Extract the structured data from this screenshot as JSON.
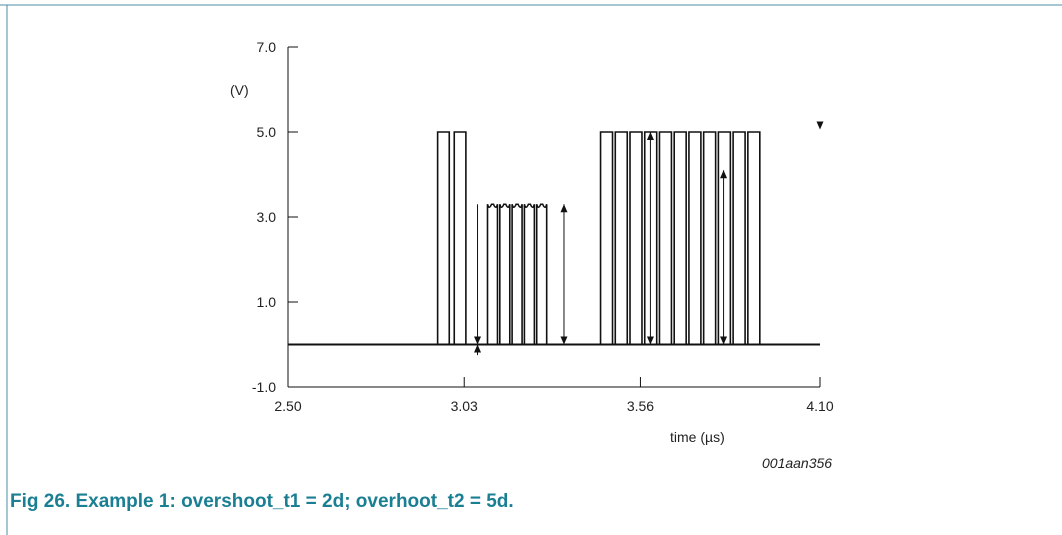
{
  "chart_data": {
    "type": "line",
    "title": "",
    "ylabel": "(V)",
    "xlabel": "time (µs)",
    "figure_code": "001aan356",
    "ylim": [
      -1.0,
      7.0
    ],
    "xlim": [
      2.5,
      4.1
    ],
    "y_ticks": [
      {
        "value": 7.0,
        "label": "7.0"
      },
      {
        "value": 5.0,
        "label": "5.0"
      },
      {
        "value": 3.0,
        "label": "3.0"
      },
      {
        "value": 1.0,
        "label": "1.0"
      },
      {
        "value": -1.0,
        "label": "-1.0"
      }
    ],
    "x_ticks": [
      {
        "value": 2.5,
        "label": "2.50"
      },
      {
        "value": 3.03,
        "label": "3.03"
      },
      {
        "value": 3.56,
        "label": "3.56"
      },
      {
        "value": 4.1,
        "label": "4.10"
      }
    ],
    "baseline_v": 0.0,
    "signal_start": 2.5,
    "signal_end": 4.1,
    "pulse_groups": [
      {
        "high_v": 5.0,
        "count": 2,
        "start": 2.95,
        "period": 0.05,
        "width": 0.035,
        "overshoot": false
      },
      {
        "high_v": 3.3,
        "count": 5,
        "start": 3.1,
        "period": 0.037,
        "width": 0.03,
        "overshoot": true
      },
      {
        "high_v": 5.0,
        "count": 11,
        "start": 3.44,
        "period": 0.0443,
        "width": 0.036,
        "overshoot": false
      }
    ],
    "arrows": [
      {
        "x": 3.07,
        "from_v": 0.0,
        "to_v": 3.3,
        "dir": "down"
      },
      {
        "x": 3.07,
        "from_v": -0.25,
        "to_v": 0.0,
        "dir": "up"
      },
      {
        "x": 3.33,
        "from_v": 0.0,
        "to_v": 3.3,
        "dir": "both"
      },
      {
        "x": 3.59,
        "from_v": 0.0,
        "to_v": 5.0,
        "dir": "both"
      },
      {
        "x": 3.81,
        "from_v": 0.0,
        "to_v": 4.1,
        "dir": "both"
      },
      {
        "x": 4.1,
        "from_v": 5.2,
        "to_v": 5.2,
        "dir": "marker-down"
      }
    ]
  },
  "caption": {
    "text": "Fig 26.   Example 1: overshoot_t1 = 2d; overhoot_t2 = 5d."
  },
  "colors": {
    "frame": "#4a8fa6",
    "caption": "#1b7f93",
    "signal": "#111111",
    "axis": "#111111"
  }
}
